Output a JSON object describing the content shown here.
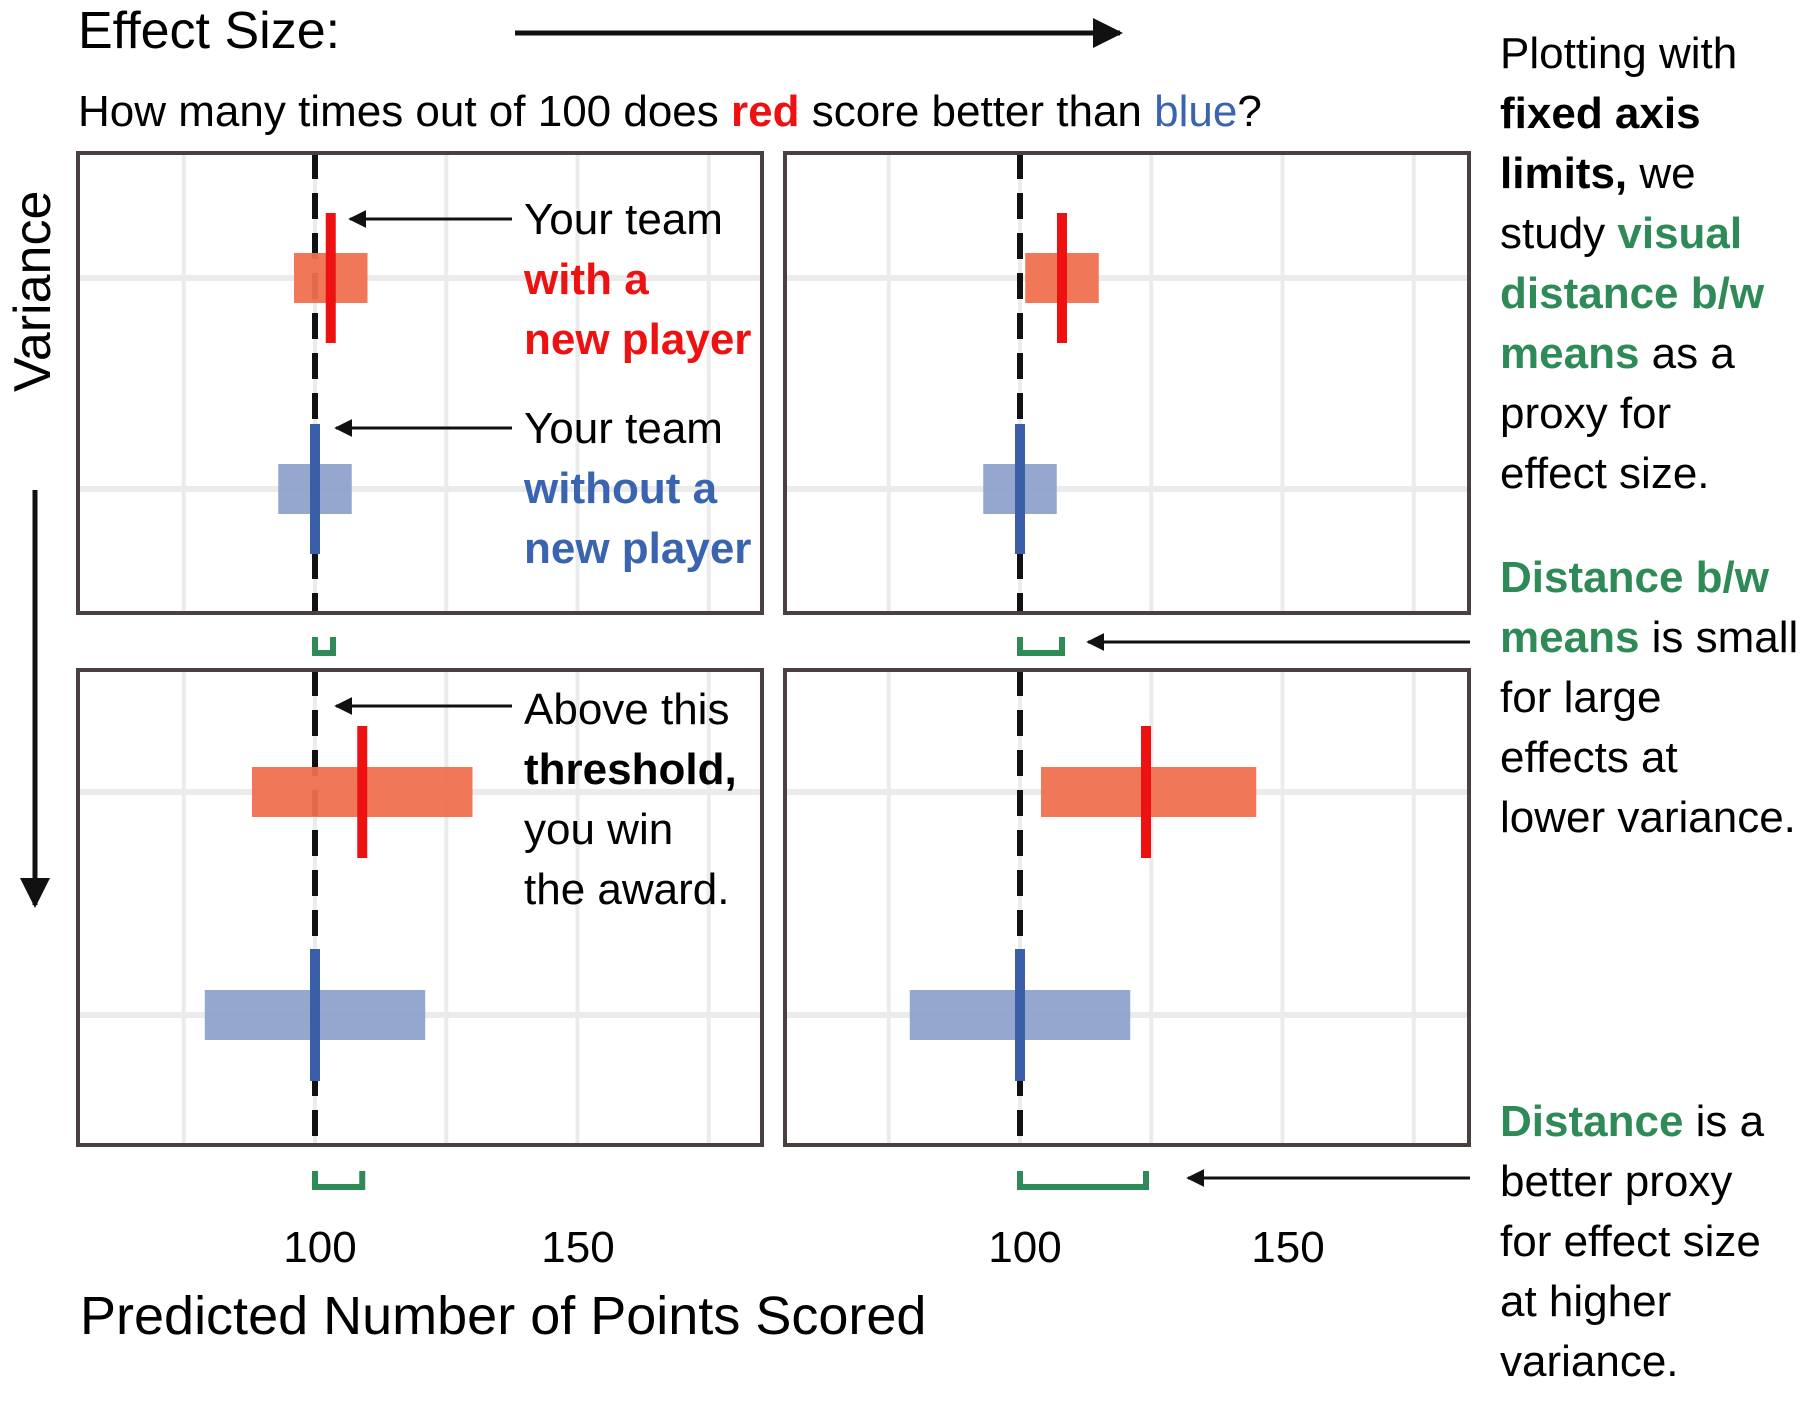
{
  "header": {
    "effect_label": "Effect Size:",
    "question_parts": [
      "How many times out of 100 does ",
      "red",
      " score better than ",
      "blue",
      "?"
    ]
  },
  "variance_label": "Variance",
  "chart_data": [
    {
      "type": "interval",
      "panel": "top-left",
      "threshold": 100,
      "xlim": [
        60,
        190
      ],
      "series": [
        {
          "name": "Your team with a new player",
          "mean": 103,
          "interval": [
            96,
            110
          ]
        },
        {
          "name": "Your team without a new player",
          "mean": 100,
          "interval": [
            93,
            107
          ]
        }
      ]
    },
    {
      "type": "interval",
      "panel": "top-right",
      "threshold": 100,
      "xlim": [
        60,
        190
      ],
      "series": [
        {
          "name": "Your team with a new player",
          "mean": 108,
          "interval": [
            101,
            115
          ]
        },
        {
          "name": "Your team without a new player",
          "mean": 100,
          "interval": [
            93,
            107
          ]
        }
      ]
    },
    {
      "type": "interval",
      "panel": "bottom-left",
      "threshold": 100,
      "xlim": [
        60,
        190
      ],
      "series": [
        {
          "name": "Your team with a new player",
          "mean": 109,
          "interval": [
            88,
            130
          ]
        },
        {
          "name": "Your team without a new player",
          "mean": 100,
          "interval": [
            79,
            121
          ]
        }
      ]
    },
    {
      "type": "interval",
      "panel": "bottom-right",
      "threshold": 100,
      "xlim": [
        60,
        190
      ],
      "series": [
        {
          "name": "Your team with a new player",
          "mean": 124,
          "interval": [
            104,
            145
          ]
        },
        {
          "name": "Your team without a new player",
          "mean": 100,
          "interval": [
            79,
            121
          ]
        }
      ]
    }
  ],
  "ticks": [
    "100",
    "150"
  ],
  "xlabel": "Predicted Number of Points Scored",
  "annotations": {
    "red_team": [
      "Your team",
      "with a",
      "new player"
    ],
    "blue_team": [
      "Your team",
      "without a",
      "new player"
    ],
    "threshold": [
      "Above this",
      "threshold,",
      "you win",
      "the award."
    ]
  },
  "sidebar": {
    "p1": [
      "Plotting with",
      "fixed axis",
      "limits,",
      " we",
      "study ",
      "visual",
      "distance b/w",
      "means",
      " as a",
      "proxy for",
      "effect size."
    ],
    "p2": [
      "Distance b/w",
      "means",
      " is small",
      "for large",
      "effects at",
      "lower variance."
    ],
    "p3": [
      "Distance",
      " is a",
      "better proxy",
      "for effect size",
      "at higher",
      "variance."
    ]
  },
  "colors": {
    "red_mean": "#ee1111",
    "red_band": "#f07050",
    "blue_mean": "#3a5ea8",
    "blue_band": "#8ea2cc",
    "green": "#2e8b57",
    "grid": "#ebebeb",
    "frame": "#4a4040",
    "red_text": "#ee1111",
    "blue_text": "#3a64b0"
  }
}
